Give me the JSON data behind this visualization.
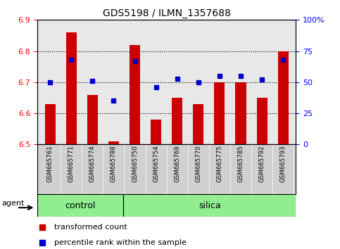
{
  "title": "GDS5198 / ILMN_1357688",
  "samples": [
    "GSM665761",
    "GSM665771",
    "GSM665774",
    "GSM665788",
    "GSM665750",
    "GSM665754",
    "GSM665769",
    "GSM665770",
    "GSM665775",
    "GSM665785",
    "GSM665792",
    "GSM665793"
  ],
  "red_values": [
    6.63,
    6.86,
    6.66,
    6.51,
    6.82,
    6.58,
    6.65,
    6.63,
    6.7,
    6.7,
    6.65,
    6.8
  ],
  "blue_pct": [
    50,
    68,
    51,
    35,
    67,
    46,
    53,
    50,
    55,
    55,
    52,
    68
  ],
  "ymin": 6.5,
  "ymax": 6.9,
  "yticks_left": [
    6.5,
    6.6,
    6.7,
    6.8,
    6.9
  ],
  "yticks_right": [
    0,
    25,
    50,
    75,
    100
  ],
  "bar_color": "#CC0000",
  "dot_color": "#0000CC",
  "bg_color": "#FFFFFF",
  "plot_bg": "#E8E8E8",
  "green_color": "#90EE90",
  "bar_width": 0.5,
  "baseline": 6.5,
  "title_fontsize": 10,
  "tick_fontsize": 8,
  "label_fontsize": 8,
  "legend_fontsize": 8,
  "group_fontsize": 9,
  "control_count": 4,
  "silica_count": 8,
  "legend_items": [
    {
      "label": "transformed count",
      "color": "#CC0000"
    },
    {
      "label": "percentile rank within the sample",
      "color": "#0000CC"
    }
  ]
}
